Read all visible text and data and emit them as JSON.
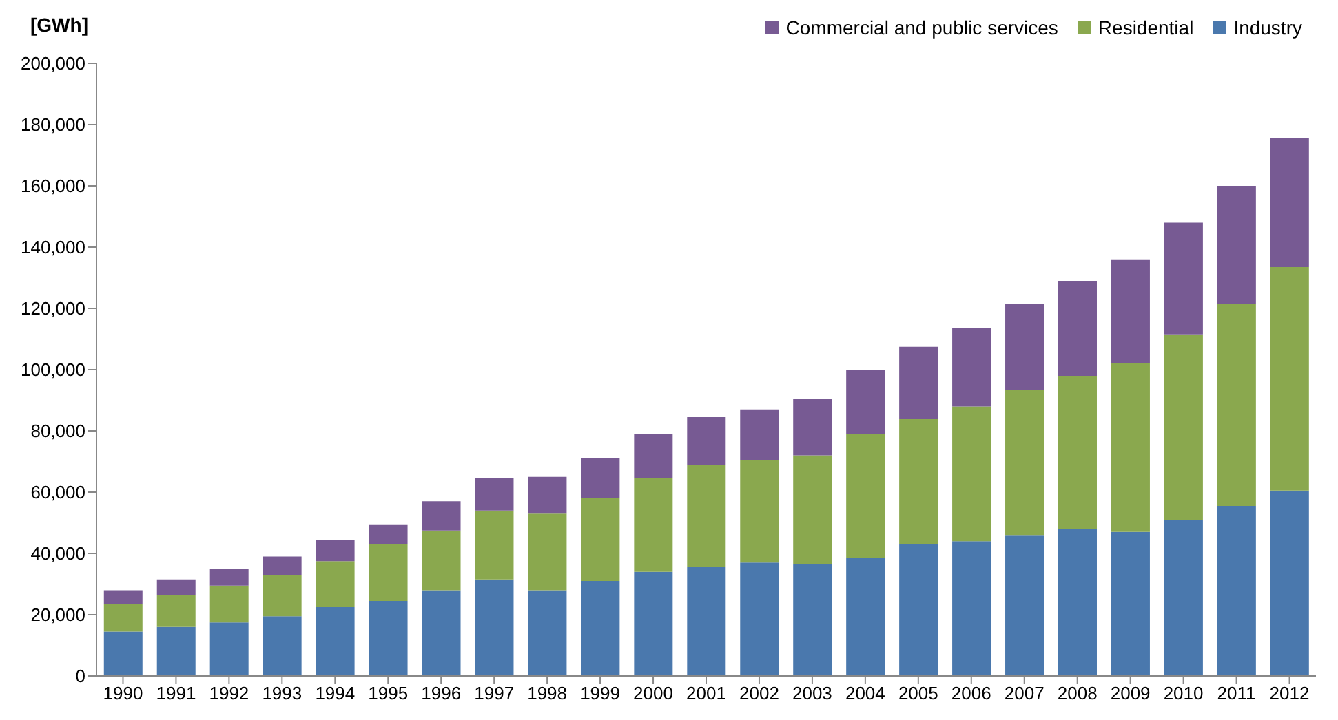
{
  "chart_data": {
    "type": "bar",
    "stacked": true,
    "ylabel": "[GWh]",
    "categories": [
      "1990",
      "1991",
      "1992",
      "1993",
      "1994",
      "1995",
      "1996",
      "1997",
      "1998",
      "1999",
      "2000",
      "2001",
      "2002",
      "2003",
      "2004",
      "2005",
      "2006",
      "2007",
      "2008",
      "2009",
      "2010",
      "2011",
      "2012"
    ],
    "series": [
      {
        "name": "Industry",
        "color": "#4a78ad",
        "values": [
          14500,
          16000,
          17500,
          19500,
          22500,
          24500,
          28000,
          31500,
          28000,
          31000,
          34000,
          35500,
          37000,
          36500,
          38500,
          43000,
          44000,
          46000,
          48000,
          47000,
          51000,
          55500,
          60500
        ]
      },
      {
        "name": "Residential",
        "color": "#8aa84e",
        "values": [
          9000,
          10500,
          12000,
          13500,
          15000,
          18500,
          19500,
          22500,
          25000,
          27000,
          30500,
          33500,
          33500,
          35500,
          40500,
          41000,
          44000,
          47500,
          50000,
          55000,
          60500,
          66000,
          73000
        ]
      },
      {
        "name": "Commercial and public services",
        "color": "#775a93",
        "values": [
          4500,
          5000,
          5500,
          6000,
          7000,
          6500,
          9500,
          10500,
          12000,
          13000,
          14500,
          15500,
          16500,
          18500,
          21000,
          23500,
          25500,
          28000,
          31000,
          34000,
          36500,
          38500,
          42000
        ]
      }
    ],
    "ylim": [
      0,
      200000
    ],
    "yticks": [
      0,
      {
        "value": 20000,
        "label": "20,000"
      },
      {
        "value": 40000,
        "label": "40,000"
      },
      {
        "value": 60000,
        "label": "60,000"
      },
      {
        "value": 80000,
        "label": "80,000"
      },
      {
        "value": 100000,
        "label": "100,000"
      },
      {
        "value": 120000,
        "label": "120,000"
      },
      {
        "value": 140000,
        "label": "140,000"
      },
      {
        "value": 160000,
        "label": "160,000"
      },
      {
        "value": 180000,
        "label": "180,000"
      },
      {
        "value": 200000,
        "label": "200,000"
      }
    ],
    "grid": false,
    "legend": "top right"
  }
}
